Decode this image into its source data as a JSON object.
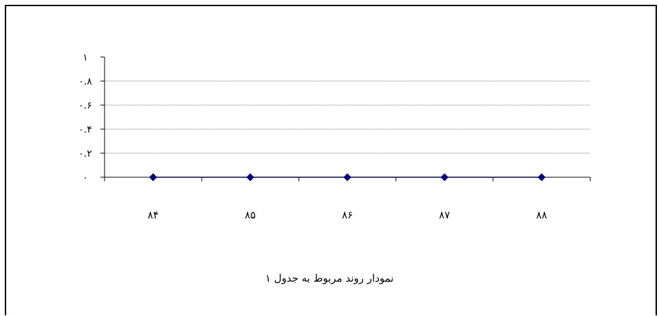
{
  "chart_data": {
    "type": "line",
    "title": "",
    "caption": "نمودار روند مربوط به جدول ۱",
    "categories": [
      "۸۴",
      "۸۵",
      "۸۶",
      "۸۷",
      "۸۸"
    ],
    "series": [
      {
        "values": [
          0,
          0,
          0,
          0,
          0
        ],
        "color": "#000080"
      }
    ],
    "y_ticks": [
      {
        "value": 0,
        "label": "۰"
      },
      {
        "value": 0.2,
        "label": "۰.۲"
      },
      {
        "value": 0.4,
        "label": "۰.۴"
      },
      {
        "value": 0.6,
        "label": "۰.۶"
      },
      {
        "value": 0.8,
        "label": "۰.۸"
      },
      {
        "value": 1,
        "label": "۱"
      }
    ],
    "ylim": [
      0,
      1
    ],
    "xlabel": "",
    "ylabel": "",
    "grid": true,
    "legend": "none"
  }
}
